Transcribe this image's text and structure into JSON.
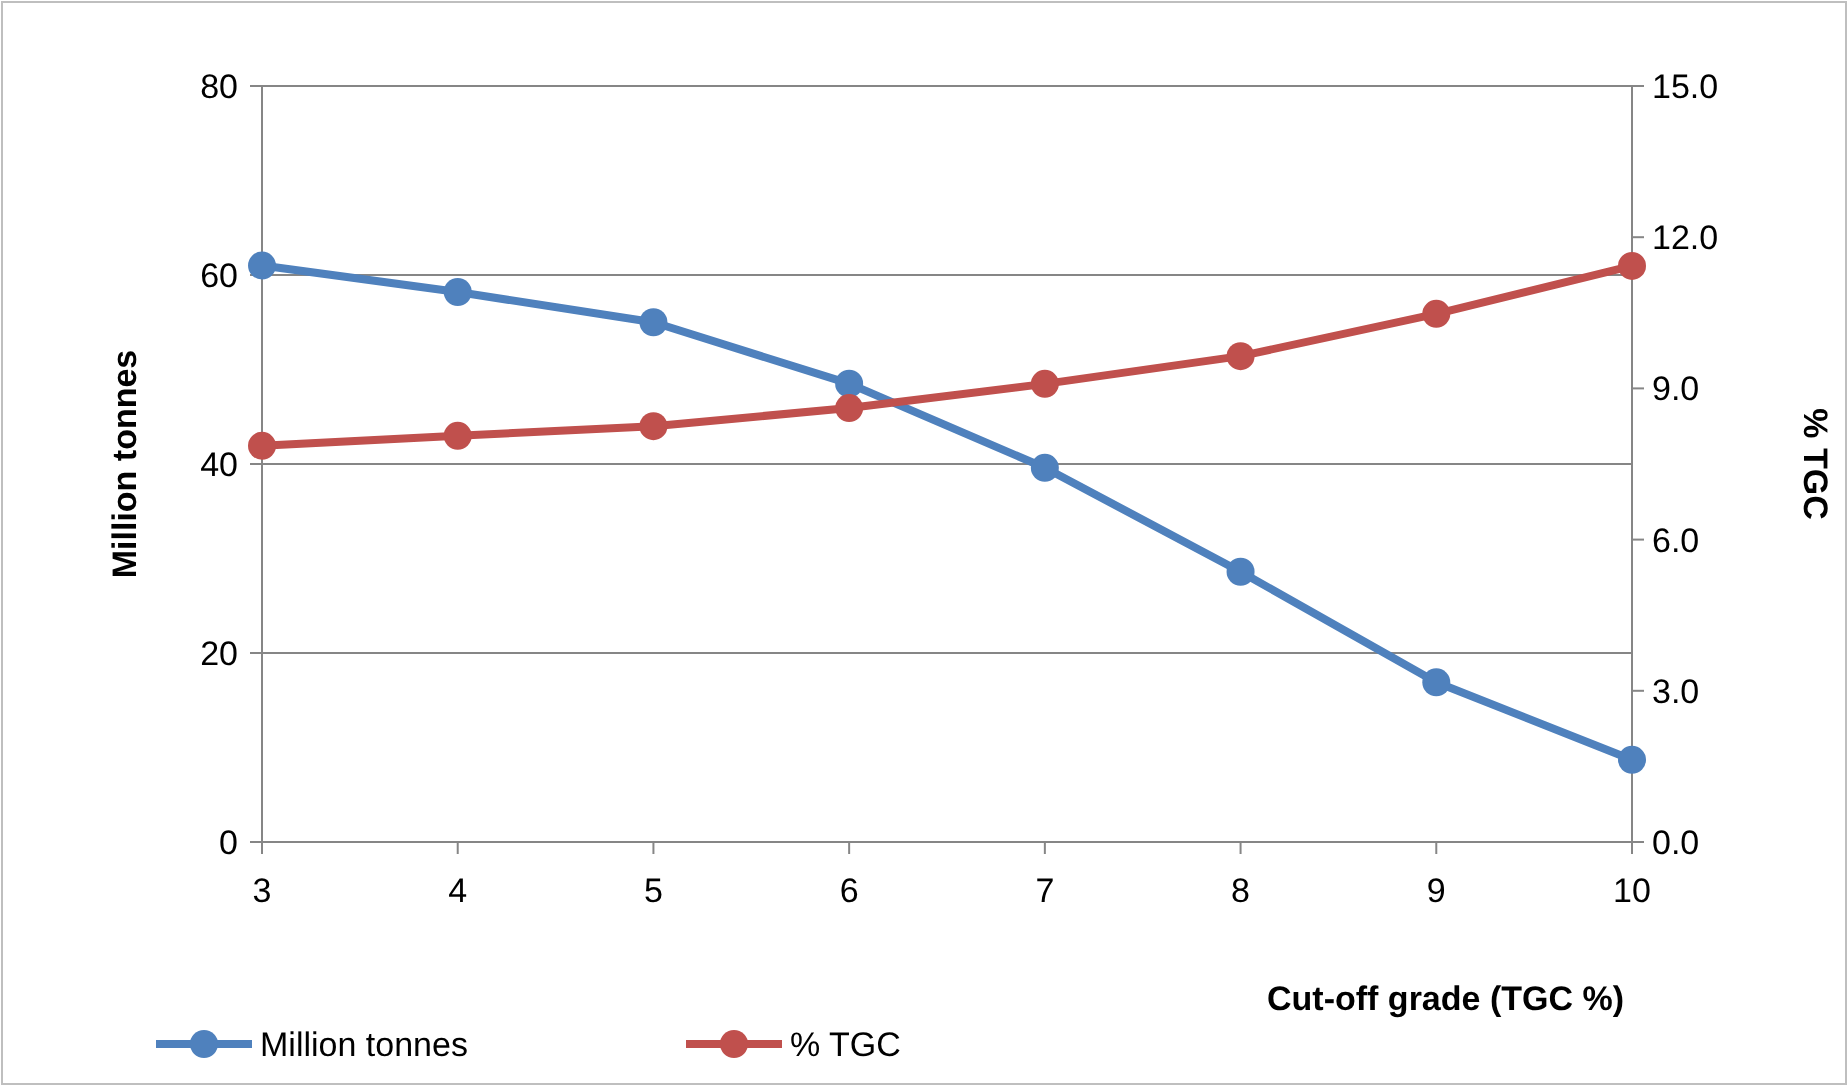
{
  "chart_data": {
    "type": "line",
    "xlabel": "Cut-off grade (TGC %)",
    "ylabel": "Million tonnes",
    "y2label": "% TGC",
    "x": [
      3,
      4,
      5,
      6,
      7,
      8,
      9,
      10
    ],
    "xlim": [
      3,
      10
    ],
    "xticks": [
      3,
      4,
      5,
      6,
      7,
      8,
      9,
      10
    ],
    "ylim": [
      0,
      80
    ],
    "yticks": [
      0,
      20,
      40,
      60,
      80
    ],
    "y2lim": [
      0,
      15
    ],
    "y2ticks": [
      {
        "value": 0,
        "label": "0.0"
      },
      {
        "value": 3,
        "label": "3.0"
      },
      {
        "value": 6,
        "label": "6.0"
      },
      {
        "value": 9,
        "label": "9.0"
      },
      {
        "value": 12,
        "label": "12.0"
      },
      {
        "value": 15,
        "label": "15.0"
      }
    ],
    "series": [
      {
        "name": "Million tonnes",
        "color": "#4f81bd",
        "values": [
          61,
          58.2,
          55,
          48.5,
          39.6,
          28.6,
          16.9,
          8.7
        ]
      },
      {
        "name": "% TGC",
        "color": "#c0504d",
        "axis": "y2",
        "values": [
          7.86,
          8.06,
          8.25,
          8.61,
          9.09,
          9.64,
          10.48,
          11.43
        ]
      }
    ],
    "grid": "y",
    "legend": "bottom left",
    "marker": "circle",
    "line_style": "solid"
  }
}
